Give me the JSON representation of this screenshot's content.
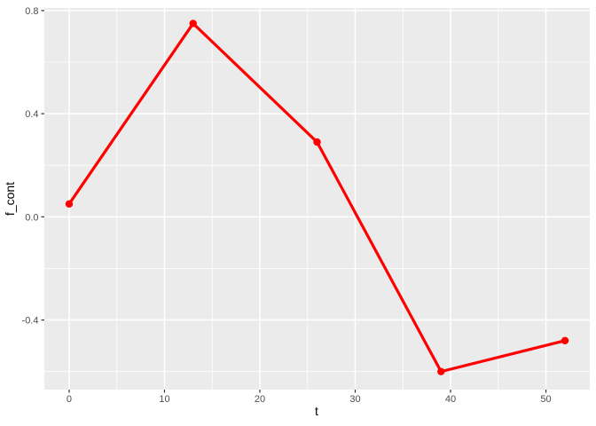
{
  "chart_data": {
    "type": "line",
    "style": "ggplot2",
    "title": "",
    "xlabel": "t",
    "ylabel": "f_cont",
    "x": [
      0,
      13,
      26,
      39,
      52
    ],
    "y": [
      0.05,
      0.75,
      0.29,
      -0.6,
      -0.48
    ],
    "series": [
      {
        "name": "f_cont",
        "color": "#FF0000",
        "x": [
          0,
          13,
          26,
          39,
          52
        ],
        "values": [
          0.05,
          0.75,
          0.29,
          -0.6,
          -0.48
        ]
      }
    ],
    "xlim": [
      -2.6,
      54.6
    ],
    "ylim": [
      -0.67,
      0.81
    ],
    "x_ticks": [
      0,
      10,
      20,
      30,
      40,
      50
    ],
    "x_tick_labels": [
      "0",
      "10",
      "20",
      "30",
      "40",
      "50"
    ],
    "y_ticks": [
      -0.4,
      0.0,
      0.4,
      0.8
    ],
    "y_tick_labels": [
      "-0.4",
      "0.0",
      "0.4",
      "0.8"
    ],
    "x_minor_ticks": [
      5,
      15,
      25,
      35,
      45
    ],
    "y_minor_ticks": [
      -0.6,
      -0.2,
      0.2,
      0.6
    ],
    "grid": true,
    "legend_position": "none",
    "colors": {
      "panel_background": "#EBEBEB",
      "grid_major": "#FFFFFF",
      "grid_minor": "#FFFFFF",
      "line": "#FF0000",
      "point": "#FF0000",
      "tick_mark": "#333333",
      "tick_label": "#4D4D4D",
      "axis_title": "#000000",
      "figure_background": "#FFFFFF"
    }
  }
}
